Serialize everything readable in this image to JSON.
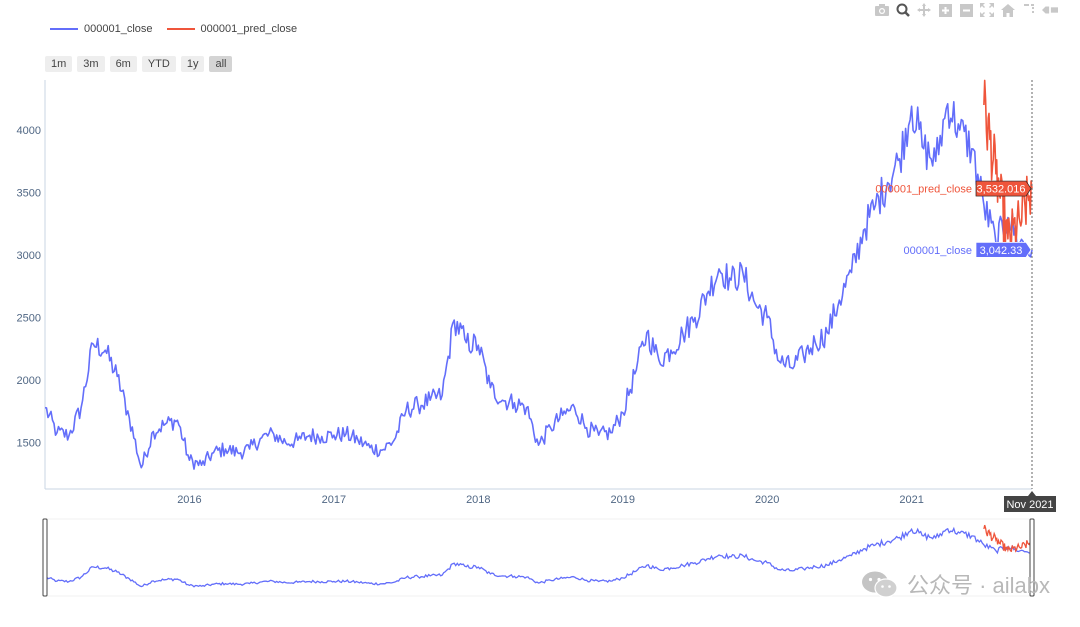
{
  "legend": [
    {
      "name": "000001_close",
      "color": "#636efa"
    },
    {
      "name": "000001_pred_close",
      "color": "#ef553b"
    }
  ],
  "range_buttons": [
    {
      "label": "1m",
      "active": false
    },
    {
      "label": "3m",
      "active": false
    },
    {
      "label": "6m",
      "active": false
    },
    {
      "label": "YTD",
      "active": false
    },
    {
      "label": "1y",
      "active": false
    },
    {
      "label": "all",
      "active": true
    }
  ],
  "modebar_icons": [
    "camera-icon",
    "zoom-icon",
    "pan-icon",
    "zoom-in-icon",
    "zoom-out-icon",
    "autoscale-icon",
    "home-icon",
    "spike-lines-icon",
    "compare-hover-icon"
  ],
  "hover": {
    "date_label": "Nov 2021",
    "close_label": "000001_close",
    "close_value": "3,042.33",
    "pred_label": "000001_pred_close",
    "pred_value": "3,532.016"
  },
  "watermark": {
    "text": "公众号 · ailabx"
  },
  "chart_data": {
    "type": "line",
    "x_ticks": [
      "2016",
      "2017",
      "2018",
      "2019",
      "2020",
      "2021"
    ],
    "y_ticks": [
      1500,
      2000,
      2500,
      3000,
      3500,
      4000
    ],
    "xlim": [
      "2015-01",
      "2021-11"
    ],
    "ylim": [
      1130,
      4400
    ],
    "grid": false,
    "legend_position": "top-left",
    "series": [
      {
        "name": "000001_close",
        "color": "#636efa",
        "x": [
          "2015-01",
          "2015-02",
          "2015-03",
          "2015-04",
          "2015-05",
          "2015-06",
          "2015-07",
          "2015-08",
          "2015-09",
          "2015-10",
          "2015-11",
          "2015-12",
          "2016-01",
          "2016-02",
          "2016-03",
          "2016-04",
          "2016-05",
          "2016-06",
          "2016-07",
          "2016-08",
          "2016-09",
          "2016-10",
          "2016-11",
          "2016-12",
          "2017-01",
          "2017-02",
          "2017-03",
          "2017-04",
          "2017-05",
          "2017-06",
          "2017-07",
          "2017-08",
          "2017-09",
          "2017-10",
          "2017-11",
          "2017-12",
          "2018-01",
          "2018-02",
          "2018-03",
          "2018-04",
          "2018-05",
          "2018-06",
          "2018-07",
          "2018-08",
          "2018-09",
          "2018-10",
          "2018-11",
          "2018-12",
          "2019-01",
          "2019-02",
          "2019-03",
          "2019-04",
          "2019-05",
          "2019-06",
          "2019-07",
          "2019-08",
          "2019-09",
          "2019-10",
          "2019-11",
          "2019-12",
          "2020-01",
          "2020-02",
          "2020-03",
          "2020-04",
          "2020-05",
          "2020-06",
          "2020-07",
          "2020-08",
          "2020-09",
          "2020-10",
          "2020-11",
          "2020-12",
          "2021-01",
          "2021-02",
          "2021-03",
          "2021-04",
          "2021-05",
          "2021-06",
          "2021-07",
          "2021-08",
          "2021-09",
          "2021-10",
          "2021-11"
        ],
        "values": [
          1780,
          1580,
          1560,
          1780,
          2290,
          2240,
          2030,
          1700,
          1300,
          1590,
          1650,
          1680,
          1360,
          1320,
          1420,
          1450,
          1420,
          1450,
          1540,
          1570,
          1500,
          1520,
          1560,
          1550,
          1560,
          1570,
          1520,
          1460,
          1440,
          1520,
          1760,
          1800,
          1840,
          1880,
          2480,
          2300,
          2280,
          1940,
          1840,
          1820,
          1780,
          1480,
          1620,
          1720,
          1780,
          1620,
          1560,
          1580,
          1740,
          2050,
          2380,
          2160,
          2240,
          2370,
          2500,
          2690,
          2890,
          2800,
          2850,
          2610,
          2500,
          2150,
          2100,
          2200,
          2300,
          2380,
          2640,
          2860,
          3200,
          3400,
          3580,
          3770,
          4190,
          3850,
          3750,
          4210,
          4000,
          3850,
          3400,
          3100,
          3300,
          3100,
          3042
        ]
      },
      {
        "name": "000001_pred_close",
        "color": "#ef553b",
        "x": [
          "2021-07",
          "2021-08",
          "2021-09",
          "2021-10",
          "2021-11"
        ],
        "values": [
          4200,
          3650,
          3130,
          3260,
          3532
        ]
      }
    ]
  }
}
